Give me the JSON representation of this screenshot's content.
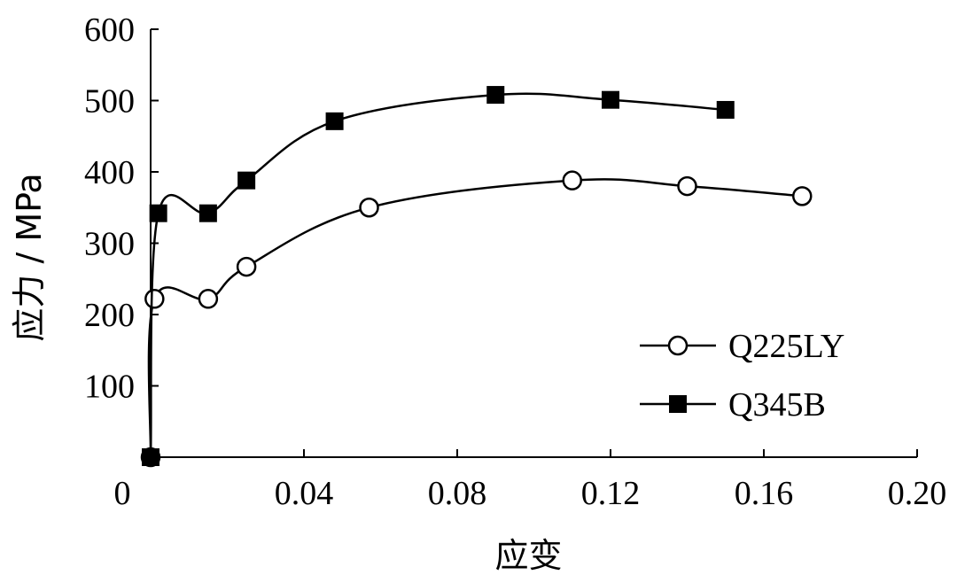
{
  "chart_data": {
    "type": "line",
    "title": "",
    "xlabel": "应变",
    "ylabel": "应力 / MPa",
    "xlim": [
      0,
      0.2
    ],
    "ylim": [
      0,
      600
    ],
    "x_ticks": [
      0,
      0.04,
      0.08,
      0.12,
      0.16,
      0.2
    ],
    "x_tick_labels": [
      "0",
      "0.04",
      "0.08",
      "0.12",
      "0.16",
      "0.20"
    ],
    "y_ticks": [
      100,
      200,
      300,
      400,
      500,
      600
    ],
    "y_tick_labels": [
      "100",
      "200",
      "300",
      "400",
      "500",
      "600"
    ],
    "grid": false,
    "legend_position": "bottom-right",
    "series": [
      {
        "name": "Q225LY",
        "marker": "open-circle",
        "color": "#000000",
        "points": [
          {
            "x": 0.0,
            "y": 0
          },
          {
            "x": 0.001,
            "y": 222
          },
          {
            "x": 0.015,
            "y": 222
          },
          {
            "x": 0.025,
            "y": 267
          },
          {
            "x": 0.057,
            "y": 350
          },
          {
            "x": 0.11,
            "y": 388
          },
          {
            "x": 0.14,
            "y": 380
          },
          {
            "x": 0.17,
            "y": 366
          }
        ]
      },
      {
        "name": "Q345B",
        "marker": "filled-square",
        "color": "#000000",
        "points": [
          {
            "x": 0.0,
            "y": 0
          },
          {
            "x": 0.002,
            "y": 342
          },
          {
            "x": 0.015,
            "y": 342
          },
          {
            "x": 0.025,
            "y": 388
          },
          {
            "x": 0.048,
            "y": 471
          },
          {
            "x": 0.09,
            "y": 508
          },
          {
            "x": 0.12,
            "y": 501
          },
          {
            "x": 0.15,
            "y": 487
          }
        ]
      }
    ]
  }
}
